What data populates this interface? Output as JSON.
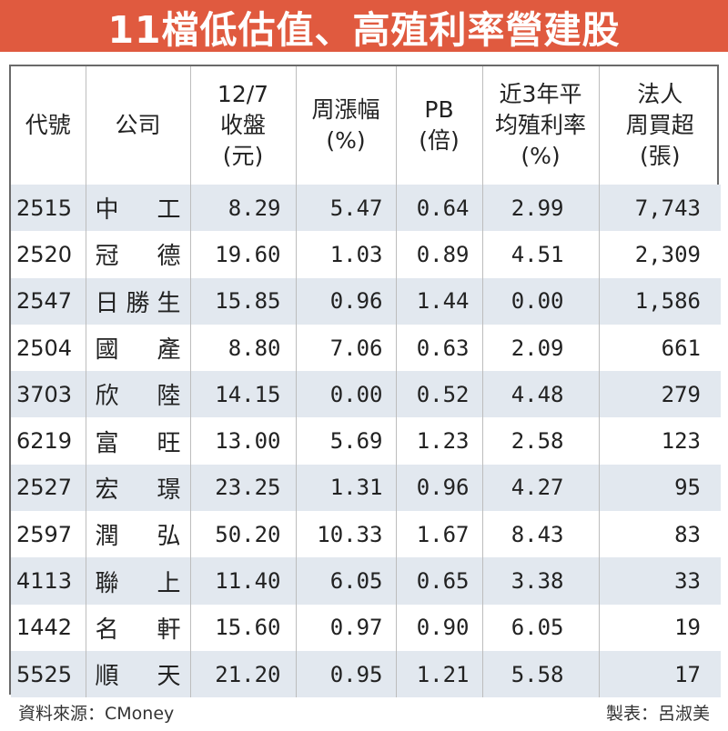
{
  "title": "11檔低估值、高殖利率營建股",
  "colors": {
    "title_bg": "#e05a3f",
    "row_stripe": "#e2e8ef",
    "border": "#6a6a6a"
  },
  "headers": {
    "code": "代號",
    "company": "公司",
    "close": [
      "12/7",
      "收盤",
      "(元)"
    ],
    "weekly_change": [
      "周漲幅",
      "(%)"
    ],
    "pb": [
      "PB",
      "(倍)"
    ],
    "yield": [
      "近3年平",
      "均殖利率",
      "(%)"
    ],
    "inst_buy": [
      "法人",
      "周買超",
      "(張)"
    ]
  },
  "rows": [
    {
      "code": "2515",
      "name": "中工",
      "close": "8.29",
      "change": "5.47",
      "pb": "0.64",
      "yield": "2.99",
      "buy": "7,743"
    },
    {
      "code": "2520",
      "name": "冠德",
      "close": "19.60",
      "change": "1.03",
      "pb": "0.89",
      "yield": "4.51",
      "buy": "2,309"
    },
    {
      "code": "2547",
      "name": "日勝生",
      "close": "15.85",
      "change": "0.96",
      "pb": "1.44",
      "yield": "0.00",
      "buy": "1,586"
    },
    {
      "code": "2504",
      "name": "國產",
      "close": "8.80",
      "change": "7.06",
      "pb": "0.63",
      "yield": "2.09",
      "buy": "661"
    },
    {
      "code": "3703",
      "name": "欣陸",
      "close": "14.15",
      "change": "0.00",
      "pb": "0.52",
      "yield": "4.48",
      "buy": "279"
    },
    {
      "code": "6219",
      "name": "富旺",
      "close": "13.00",
      "change": "5.69",
      "pb": "1.23",
      "yield": "2.58",
      "buy": "123"
    },
    {
      "code": "2527",
      "name": "宏璟",
      "close": "23.25",
      "change": "1.31",
      "pb": "0.96",
      "yield": "4.27",
      "buy": "95"
    },
    {
      "code": "2597",
      "name": "潤弘",
      "close": "50.20",
      "change": "10.33",
      "pb": "1.67",
      "yield": "8.43",
      "buy": "83"
    },
    {
      "code": "4113",
      "name": "聯上",
      "close": "11.40",
      "change": "6.05",
      "pb": "0.65",
      "yield": "3.38",
      "buy": "33"
    },
    {
      "code": "1442",
      "name": "名軒",
      "close": "15.60",
      "change": "0.97",
      "pb": "0.90",
      "yield": "6.05",
      "buy": "19"
    },
    {
      "code": "5525",
      "name": "順天",
      "close": "21.20",
      "change": "0.95",
      "pb": "1.21",
      "yield": "5.58",
      "buy": "17"
    }
  ],
  "footer": {
    "source": "資料來源：CMoney",
    "credit": "製表：呂淑美"
  }
}
